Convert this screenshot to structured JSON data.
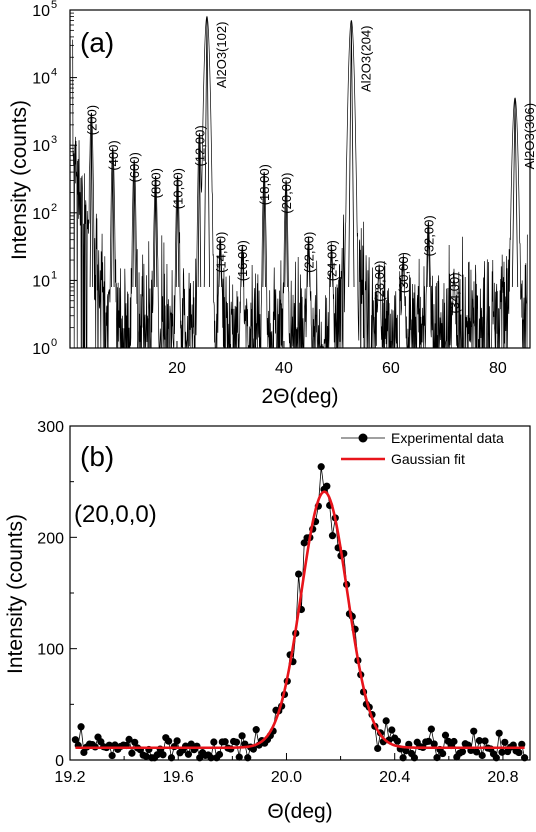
{
  "chart_data": [
    {
      "panel": "(a)",
      "type": "line",
      "xlabel": "2Θ(deg)",
      "ylabel": "Intensity (counts)",
      "xlim": [
        0,
        86
      ],
      "ylim": [
        1,
        100000
      ],
      "yscale": "log",
      "x_ticks": [
        20,
        40,
        60,
        80
      ],
      "y_ticks": [
        {
          "value": 1,
          "base": "10",
          "exp": "0"
        },
        {
          "value": 10,
          "base": "10",
          "exp": "1"
        },
        {
          "value": 100,
          "base": "10",
          "exp": "2"
        },
        {
          "value": 1000,
          "base": "10",
          "exp": "3"
        },
        {
          "value": 10000,
          "base": "10",
          "exp": "4"
        },
        {
          "value": 100000,
          "base": "10",
          "exp": "5"
        }
      ],
      "peaks": [
        {
          "x": 4.0,
          "y": 3000,
          "label": "(200)"
        },
        {
          "x": 8.0,
          "y": 900,
          "label": "(400)"
        },
        {
          "x": 12.0,
          "y": 600,
          "label": "(600)"
        },
        {
          "x": 16.0,
          "y": 350,
          "label": "(800)"
        },
        {
          "x": 20.1,
          "y": 350,
          "label": "(10,00)"
        },
        {
          "x": 24.2,
          "y": 1500,
          "label": "(12,00)"
        },
        {
          "x": 25.6,
          "y": 80000,
          "label": "Al2O3(102)"
        },
        {
          "x": 28.1,
          "y": 40,
          "label": "(14,00)"
        },
        {
          "x": 32.2,
          "y": 30,
          "label": "(16,00)"
        },
        {
          "x": 36.3,
          "y": 400,
          "label": "(18,00)"
        },
        {
          "x": 40.4,
          "y": 300,
          "label": "(20,00)"
        },
        {
          "x": 44.6,
          "y": 40,
          "label": "(22,00)"
        },
        {
          "x": 48.9,
          "y": 30,
          "label": "(24,00)"
        },
        {
          "x": 52.6,
          "y": 70000,
          "label": "Al2O3(204)"
        },
        {
          "x": 57.8,
          "y": 15,
          "label": "(28,00)"
        },
        {
          "x": 62.3,
          "y": 20,
          "label": "(30,00)"
        },
        {
          "x": 67.0,
          "y": 70,
          "label": "(32,00)"
        },
        {
          "x": 71.8,
          "y": 10,
          "label": "(34,00)"
        },
        {
          "x": 83.2,
          "y": 5000,
          "label": "Al2O3(306)"
        }
      ]
    },
    {
      "panel": "(b)",
      "type": "scatter",
      "annotation": "(20,0,0)",
      "xlabel": "Θ(deg)",
      "ylabel": "Intensity (counts)",
      "xlim": [
        19.2,
        20.9
      ],
      "ylim": [
        0,
        300
      ],
      "x_ticks": [
        "19.2",
        "19.6",
        "20.0",
        "20.4",
        "20.8"
      ],
      "y_ticks": [
        "0",
        "100",
        "200",
        "300"
      ],
      "legend_position": "top-right",
      "series": [
        {
          "name": "Experimental data",
          "kind": "points+line",
          "x_range": [
            19.22,
            20.88
          ],
          "points_count": 160,
          "baseline": 11
        },
        {
          "name": "Gaussian fit",
          "kind": "line",
          "color": "#e8141b",
          "center": 20.14,
          "amplitude": 230,
          "sigma": 0.085,
          "baseline": 11
        }
      ]
    }
  ]
}
